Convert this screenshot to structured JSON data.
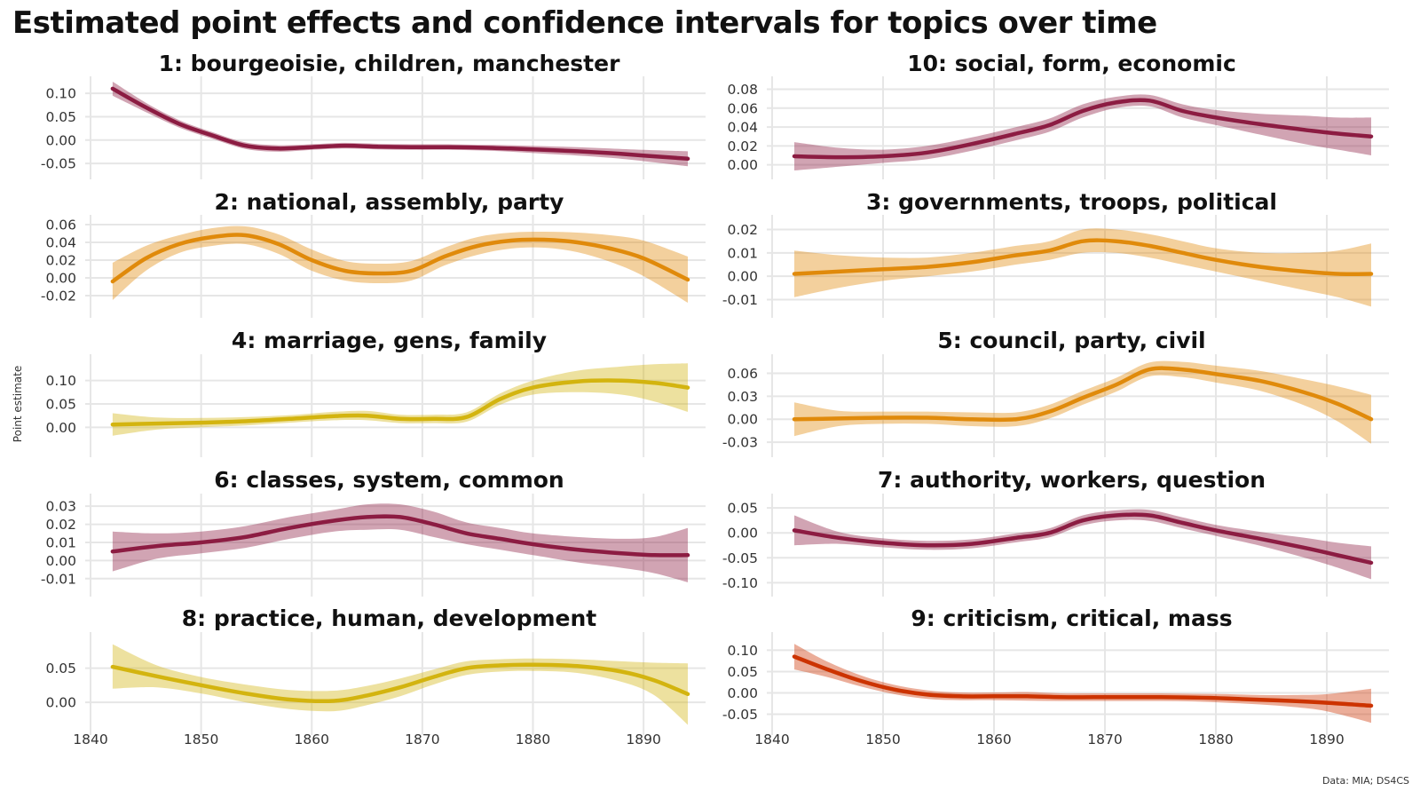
{
  "title": "Estimated point effects and confidence intervals for topics over time",
  "ylabel": "Point estimate",
  "caption": "Data: MIA; DS4CS",
  "colors": {
    "crimson": "#8c1c42",
    "orange": "#e08a0b",
    "gold": "#d3b40f",
    "red": "#cc3300",
    "grid": "#e6e6e6"
  },
  "chart_data": [
    {
      "type": "line",
      "title": "1: bourgeoisie, children, manchester",
      "color": "#8c1c42",
      "ylim": [
        -0.065,
        0.125
      ],
      "yticks": [
        0.1,
        0.05,
        0.0,
        -0.05
      ],
      "ytick_labels": [
        "0.10",
        "0.05",
        "0.00",
        "-0.05"
      ],
      "x": [
        1842,
        1845,
        1848,
        1851,
        1854,
        1857,
        1860,
        1863,
        1866,
        1869,
        1872,
        1875,
        1878,
        1881,
        1884,
        1887,
        1890,
        1894
      ],
      "y": [
        0.11,
        0.07,
        0.035,
        0.01,
        -0.012,
        -0.018,
        -0.015,
        -0.012,
        -0.014,
        -0.015,
        -0.015,
        -0.016,
        -0.018,
        -0.021,
        -0.024,
        -0.028,
        -0.033,
        -0.04
      ],
      "lower": [
        0.095,
        0.06,
        0.027,
        0.003,
        -0.019,
        -0.025,
        -0.021,
        -0.018,
        -0.02,
        -0.021,
        -0.021,
        -0.022,
        -0.025,
        -0.029,
        -0.033,
        -0.038,
        -0.045,
        -0.056
      ],
      "upper": [
        0.125,
        0.08,
        0.043,
        0.017,
        -0.005,
        -0.011,
        -0.009,
        -0.006,
        -0.008,
        -0.009,
        -0.009,
        -0.01,
        -0.011,
        -0.013,
        -0.015,
        -0.018,
        -0.021,
        -0.024
      ]
    },
    {
      "type": "line",
      "title": "10: social, form, economic",
      "color": "#8c1c42",
      "ylim": [
        -0.006,
        0.088
      ],
      "yticks": [
        0.08,
        0.06,
        0.04,
        0.02,
        0.0
      ],
      "ytick_labels": [
        "0.08",
        "0.06",
        "0.04",
        "0.02",
        "0.00"
      ],
      "x": [
        1842,
        1846,
        1850,
        1854,
        1858,
        1862,
        1865,
        1868,
        1871,
        1874,
        1877,
        1880,
        1884,
        1888,
        1891,
        1894
      ],
      "y": [
        0.009,
        0.008,
        0.009,
        0.013,
        0.022,
        0.033,
        0.042,
        0.057,
        0.066,
        0.068,
        0.057,
        0.05,
        0.043,
        0.037,
        0.033,
        0.03
      ],
      "lower": [
        -0.006,
        -0.002,
        0.002,
        0.006,
        0.015,
        0.026,
        0.035,
        0.05,
        0.06,
        0.062,
        0.05,
        0.042,
        0.032,
        0.022,
        0.016,
        0.01
      ],
      "upper": [
        0.024,
        0.018,
        0.016,
        0.02,
        0.029,
        0.04,
        0.049,
        0.064,
        0.072,
        0.074,
        0.064,
        0.058,
        0.054,
        0.052,
        0.05,
        0.05
      ]
    },
    {
      "type": "line",
      "title": "2: national, assembly, party",
      "color": "#e08a0b",
      "ylim": [
        -0.035,
        0.065
      ],
      "yticks": [
        0.06,
        0.04,
        0.02,
        0.0,
        -0.02
      ],
      "ytick_labels": [
        "0.06",
        "0.04",
        "0.02",
        "0.00",
        "-0.02"
      ],
      "x": [
        1842,
        1845,
        1848,
        1851,
        1854,
        1857,
        1860,
        1863,
        1866,
        1869,
        1872,
        1875,
        1878,
        1881,
        1884,
        1887,
        1890,
        1894
      ],
      "y": [
        -0.004,
        0.022,
        0.038,
        0.046,
        0.048,
        0.038,
        0.02,
        0.008,
        0.005,
        0.008,
        0.024,
        0.036,
        0.042,
        0.043,
        0.04,
        0.033,
        0.022,
        -0.002
      ],
      "lower": [
        -0.025,
        0.008,
        0.028,
        0.036,
        0.038,
        0.027,
        0.008,
        -0.003,
        -0.006,
        -0.003,
        0.014,
        0.026,
        0.033,
        0.034,
        0.029,
        0.018,
        0.002,
        -0.028
      ],
      "upper": [
        0.017,
        0.036,
        0.048,
        0.056,
        0.058,
        0.049,
        0.032,
        0.019,
        0.016,
        0.019,
        0.034,
        0.046,
        0.051,
        0.052,
        0.051,
        0.048,
        0.042,
        0.024
      ]
    },
    {
      "type": "line",
      "title": "3: governments, troops, political",
      "color": "#e08a0b",
      "ylim": [
        -0.014,
        0.024
      ],
      "yticks": [
        0.02,
        0.01,
        0.0,
        -0.01
      ],
      "ytick_labels": [
        "0.02",
        "0.01",
        "0.00",
        "-0.01"
      ],
      "x": [
        1842,
        1846,
        1850,
        1854,
        1858,
        1862,
        1865,
        1868,
        1871,
        1874,
        1877,
        1880,
        1884,
        1888,
        1891,
        1894
      ],
      "y": [
        0.001,
        0.002,
        0.003,
        0.004,
        0.006,
        0.009,
        0.011,
        0.015,
        0.015,
        0.013,
        0.01,
        0.007,
        0.004,
        0.002,
        0.001,
        0.001
      ],
      "lower": [
        -0.009,
        -0.005,
        -0.002,
        0.0,
        0.002,
        0.005,
        0.007,
        0.01,
        0.01,
        0.008,
        0.005,
        0.002,
        -0.002,
        -0.006,
        -0.009,
        -0.013
      ],
      "upper": [
        0.011,
        0.009,
        0.008,
        0.008,
        0.01,
        0.013,
        0.015,
        0.02,
        0.02,
        0.018,
        0.015,
        0.012,
        0.01,
        0.01,
        0.011,
        0.014
      ]
    },
    {
      "type": "line",
      "title": "4: marriage, gens, family",
      "color": "#d3b40f",
      "ylim": [
        -0.045,
        0.145
      ],
      "yticks": [
        0.1,
        0.05,
        0.0
      ],
      "ytick_labels": [
        "0.10",
        "0.05",
        "0.00"
      ],
      "x": [
        1842,
        1846,
        1850,
        1854,
        1858,
        1862,
        1865,
        1868,
        1871,
        1874,
        1877,
        1880,
        1884,
        1888,
        1891,
        1894
      ],
      "y": [
        0.006,
        0.008,
        0.01,
        0.013,
        0.018,
        0.024,
        0.025,
        0.018,
        0.018,
        0.022,
        0.06,
        0.085,
        0.098,
        0.1,
        0.095,
        0.085
      ],
      "lower": [
        -0.018,
        -0.005,
        0.0,
        0.004,
        0.01,
        0.015,
        0.015,
        0.009,
        0.009,
        0.012,
        0.048,
        0.07,
        0.075,
        0.07,
        0.055,
        0.033
      ],
      "upper": [
        0.03,
        0.021,
        0.02,
        0.022,
        0.026,
        0.033,
        0.035,
        0.027,
        0.027,
        0.032,
        0.072,
        0.1,
        0.121,
        0.13,
        0.135,
        0.137
      ]
    },
    {
      "type": "line",
      "title": "5: council, party, civil",
      "color": "#e08a0b",
      "ylim": [
        -0.038,
        0.078
      ],
      "yticks": [
        0.06,
        0.03,
        0.0,
        -0.03
      ],
      "ytick_labels": [
        "0.06",
        "0.03",
        "0.00",
        "-0.03"
      ],
      "x": [
        1842,
        1846,
        1850,
        1854,
        1858,
        1862,
        1865,
        1868,
        1871,
        1874,
        1877,
        1880,
        1884,
        1888,
        1891,
        1894
      ],
      "y": [
        0.0,
        0.001,
        0.002,
        0.002,
        0.0,
        0.0,
        0.01,
        0.028,
        0.045,
        0.065,
        0.065,
        0.059,
        0.05,
        0.035,
        0.02,
        0.0
      ],
      "lower": [
        -0.022,
        -0.009,
        -0.006,
        -0.006,
        -0.009,
        -0.009,
        0.001,
        0.019,
        0.036,
        0.056,
        0.055,
        0.048,
        0.037,
        0.018,
        -0.003,
        -0.032
      ],
      "upper": [
        0.022,
        0.011,
        0.01,
        0.01,
        0.009,
        0.009,
        0.019,
        0.037,
        0.054,
        0.074,
        0.075,
        0.07,
        0.063,
        0.052,
        0.043,
        0.032
      ]
    },
    {
      "type": "line",
      "title": "6: classes, system, common",
      "color": "#8c1c42",
      "ylim": [
        -0.015,
        0.034
      ],
      "yticks": [
        0.03,
        0.02,
        0.01,
        0.0,
        -0.01
      ],
      "ytick_labels": [
        "0.03",
        "0.02",
        "0.01",
        "0.00",
        "-0.01"
      ],
      "x": [
        1842,
        1846,
        1850,
        1854,
        1858,
        1862,
        1865,
        1868,
        1871,
        1874,
        1877,
        1880,
        1884,
        1888,
        1891,
        1894
      ],
      "y": [
        0.005,
        0.008,
        0.01,
        0.013,
        0.018,
        0.022,
        0.024,
        0.024,
        0.02,
        0.015,
        0.012,
        0.009,
        0.006,
        0.004,
        0.003,
        0.003
      ],
      "lower": [
        -0.006,
        0.001,
        0.004,
        0.007,
        0.012,
        0.016,
        0.017,
        0.017,
        0.013,
        0.009,
        0.006,
        0.003,
        -0.001,
        -0.004,
        -0.007,
        -0.012
      ],
      "upper": [
        0.016,
        0.015,
        0.016,
        0.019,
        0.024,
        0.028,
        0.031,
        0.031,
        0.027,
        0.021,
        0.018,
        0.015,
        0.013,
        0.012,
        0.013,
        0.018
      ]
    },
    {
      "type": "line",
      "title": "7: authority, workers, question",
      "color": "#8c1c42",
      "ylim": [
        -0.11,
        0.068
      ],
      "yticks": [
        0.05,
        0.0,
        -0.05,
        -0.1
      ],
      "ytick_labels": [
        "0.05",
        "0.00",
        "-0.05",
        "-0.10"
      ],
      "x": [
        1842,
        1846,
        1850,
        1854,
        1858,
        1862,
        1865,
        1868,
        1871,
        1874,
        1877,
        1880,
        1884,
        1888,
        1891,
        1894
      ],
      "y": [
        0.005,
        -0.01,
        -0.02,
        -0.025,
        -0.022,
        -0.01,
        0.0,
        0.025,
        0.035,
        0.035,
        0.02,
        0.005,
        -0.012,
        -0.03,
        -0.045,
        -0.06
      ],
      "lower": [
        -0.025,
        -0.022,
        -0.029,
        -0.034,
        -0.031,
        -0.019,
        -0.009,
        0.015,
        0.025,
        0.024,
        0.009,
        -0.006,
        -0.026,
        -0.05,
        -0.07,
        -0.093
      ],
      "upper": [
        0.035,
        0.002,
        -0.011,
        -0.016,
        -0.013,
        -0.001,
        0.009,
        0.035,
        0.045,
        0.046,
        0.031,
        0.016,
        0.002,
        -0.01,
        -0.02,
        -0.027
      ]
    },
    {
      "type": "line",
      "title": "8: practice, human, development",
      "color": "#d3b40f",
      "ylim": [
        -0.035,
        0.095
      ],
      "yticks": [
        0.05,
        0.0
      ],
      "ytick_labels": [
        "0.05",
        "0.00"
      ],
      "x": [
        1842,
        1846,
        1850,
        1854,
        1858,
        1862,
        1865,
        1868,
        1871,
        1874,
        1877,
        1880,
        1884,
        1888,
        1891,
        1894
      ],
      "y": [
        0.052,
        0.038,
        0.025,
        0.013,
        0.004,
        0.002,
        0.01,
        0.022,
        0.037,
        0.05,
        0.054,
        0.055,
        0.053,
        0.045,
        0.032,
        0.012
      ],
      "lower": [
        0.02,
        0.022,
        0.013,
        0.0,
        -0.01,
        -0.013,
        -0.004,
        0.009,
        0.026,
        0.04,
        0.045,
        0.046,
        0.043,
        0.03,
        0.01,
        -0.033
      ],
      "upper": [
        0.085,
        0.054,
        0.037,
        0.026,
        0.018,
        0.017,
        0.024,
        0.035,
        0.048,
        0.06,
        0.063,
        0.064,
        0.063,
        0.06,
        0.058,
        0.057
      ]
    },
    {
      "type": "line",
      "title": "9: criticism, critical, mass",
      "color": "#cc3300",
      "ylim": [
        -0.078,
        0.13
      ],
      "yticks": [
        0.1,
        0.05,
        0.0,
        -0.05
      ],
      "ytick_labels": [
        "0.10",
        "0.05",
        "0.00",
        "-0.05"
      ],
      "x": [
        1842,
        1845,
        1848,
        1851,
        1854,
        1857,
        1860,
        1863,
        1866,
        1869,
        1872,
        1875,
        1878,
        1881,
        1884,
        1887,
        1890,
        1894
      ],
      "y": [
        0.085,
        0.055,
        0.028,
        0.008,
        -0.004,
        -0.008,
        -0.008,
        -0.008,
        -0.01,
        -0.01,
        -0.01,
        -0.01,
        -0.011,
        -0.013,
        -0.016,
        -0.019,
        -0.023,
        -0.03
      ],
      "lower": [
        0.055,
        0.037,
        0.015,
        -0.003,
        -0.014,
        -0.017,
        -0.017,
        -0.018,
        -0.019,
        -0.019,
        -0.019,
        -0.019,
        -0.02,
        -0.023,
        -0.027,
        -0.033,
        -0.043,
        -0.07
      ],
      "upper": [
        0.115,
        0.073,
        0.041,
        0.019,
        0.006,
        0.001,
        0.001,
        0.002,
        -0.001,
        -0.001,
        -0.001,
        -0.001,
        -0.002,
        -0.003,
        -0.005,
        -0.005,
        -0.003,
        0.01
      ]
    }
  ],
  "xaxis": {
    "ticks": [
      1840,
      1850,
      1860,
      1870,
      1880,
      1890
    ],
    "tick_labels": [
      "1840",
      "1850",
      "1860",
      "1870",
      "1880",
      "1890"
    ],
    "xlim": [
      1840,
      1894
    ]
  }
}
